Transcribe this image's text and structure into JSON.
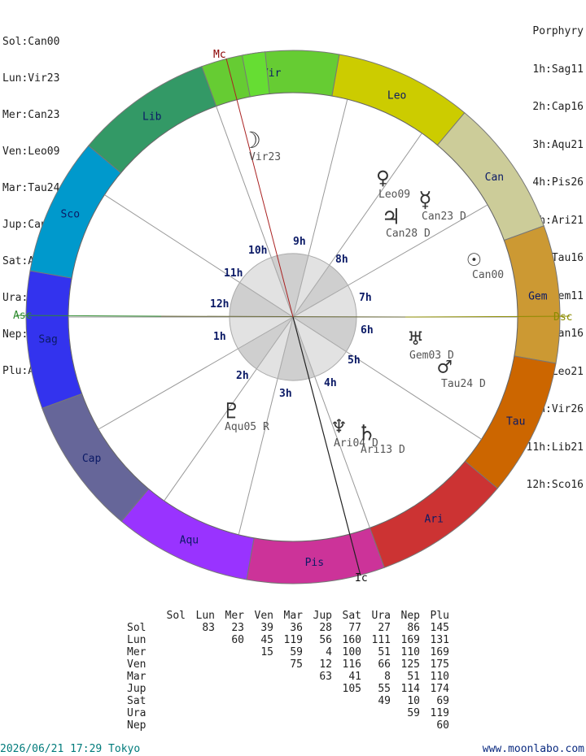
{
  "planet_positions": [
    "Sol:Can00",
    "Lun:Vir23",
    "Mer:Can23",
    "Ven:Leo09",
    "Mar:Tau24",
    "Jup:Can28",
    "Sat:Ari13",
    "Ura:Gem03",
    "Nep:Ari04",
    "Plu:Aqu05"
  ],
  "house_system": "Porphyry",
  "house_cusps": [
    "1h:Sag11",
    "2h:Cap16",
    "3h:Aqu21",
    "4h:Pis26",
    "5h:Ari21",
    "6h:Tau16",
    "7h:Gem11",
    "8h:Can16",
    "9h:Leo21",
    "10h:Vir26",
    "11h:Lib21",
    "12h:Sco16"
  ],
  "signs": [
    {
      "abbr": "Vir",
      "color": "#66cc33",
      "start_deg": 80
    },
    {
      "abbr": "Leo",
      "color": "#cccc00",
      "start_deg": 50
    },
    {
      "abbr": "Can",
      "color": "#cccc99",
      "start_deg": 20
    },
    {
      "abbr": "Gem",
      "color": "#cc9933",
      "start_deg": -10
    },
    {
      "abbr": "Tau",
      "color": "#cc6600",
      "start_deg": -40
    },
    {
      "abbr": "Ari",
      "color": "#cc3333",
      "start_deg": -70
    },
    {
      "abbr": "Pis",
      "color": "#cc3399",
      "start_deg": -100
    },
    {
      "abbr": "Aqu",
      "color": "#9933ff",
      "start_deg": -130
    },
    {
      "abbr": "Cap",
      "color": "#666699",
      "start_deg": -160
    },
    {
      "abbr": "Sag",
      "color": "#3333ee",
      "start_deg": 170
    },
    {
      "abbr": "Sco",
      "color": "#0099cc",
      "start_deg": 140
    },
    {
      "abbr": "Lib",
      "color": "#339966",
      "start_deg": 110
    }
  ],
  "axes": {
    "asc": "Asc",
    "dsc": "Dsc",
    "mc": "Mc",
    "ic": "Ic"
  },
  "house_labels": [
    "1h",
    "2h",
    "3h",
    "4h",
    "5h",
    "6h",
    "7h",
    "8h",
    "9h",
    "10h",
    "11h",
    "12h"
  ],
  "planets": [
    {
      "glyph": "☽",
      "label": "Vir23"
    },
    {
      "glyph": "♀",
      "label": "Leo09"
    },
    {
      "glyph": "☿",
      "label": "Can23 D"
    },
    {
      "glyph": "♃",
      "label": "Can28 D"
    },
    {
      "glyph": "☉",
      "label": "Can00"
    },
    {
      "glyph": "♅",
      "label": "Gem03 D"
    },
    {
      "glyph": "♂",
      "label": "Tau24 D"
    },
    {
      "glyph": "♇",
      "label": "Aqu05 R"
    },
    {
      "glyph": "♆",
      "label": "Ari04 D"
    },
    {
      "glyph": "♄",
      "label": "Ari13 D"
    }
  ],
  "aspect_table": {
    "columns": [
      "Sol",
      "Lun",
      "Mer",
      "Ven",
      "Mar",
      "Jup",
      "Sat",
      "Ura",
      "Nep",
      "Plu"
    ],
    "rows": [
      {
        "name": "Sol",
        "values": [
          "",
          "83",
          "23",
          "39",
          "36",
          "28",
          "77",
          "27",
          "86",
          "145"
        ]
      },
      {
        "name": "Lun",
        "values": [
          "",
          "",
          "60",
          "45",
          "119",
          "56",
          "160",
          "111",
          "169",
          "131"
        ]
      },
      {
        "name": "Mer",
        "values": [
          "",
          "",
          "",
          "15",
          "59",
          "4",
          "100",
          "51",
          "110",
          "169"
        ]
      },
      {
        "name": "Ven",
        "values": [
          "",
          "",
          "",
          "",
          "75",
          "12",
          "116",
          "66",
          "125",
          "175"
        ]
      },
      {
        "name": "Mar",
        "values": [
          "",
          "",
          "",
          "",
          "",
          "63",
          "41",
          "8",
          "51",
          "110"
        ]
      },
      {
        "name": "Jup",
        "values": [
          "",
          "",
          "",
          "",
          "",
          "",
          "105",
          "55",
          "114",
          "174"
        ]
      },
      {
        "name": "Sat",
        "values": [
          "",
          "",
          "",
          "",
          "",
          "",
          "",
          "49",
          "10",
          "69"
        ]
      },
      {
        "name": "Ura",
        "values": [
          "",
          "",
          "",
          "",
          "",
          "",
          "",
          "",
          "59",
          "119"
        ]
      },
      {
        "name": "Nep",
        "values": [
          "",
          "",
          "",
          "",
          "",
          "",
          "",
          "",
          "",
          "60"
        ]
      }
    ]
  },
  "footer": {
    "datetime": "2026/06/21 17:29 Tokyo",
    "site": "www.moonlabo.com"
  }
}
